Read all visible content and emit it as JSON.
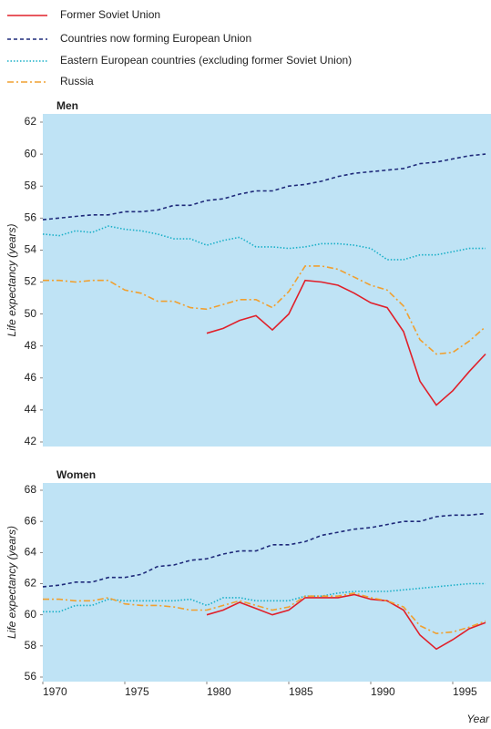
{
  "chart_data": [
    {
      "type": "line",
      "title": "Men",
      "ylabel": "Life expectancy (years)",
      "x": [
        1970,
        1971,
        1972,
        1973,
        1974,
        1975,
        1976,
        1977,
        1978,
        1979,
        1980,
        1981,
        1982,
        1983,
        1984,
        1985,
        1986,
        1987,
        1988,
        1989,
        1990,
        1991,
        1992,
        1993,
        1994,
        1995,
        1996,
        1997
      ],
      "xlim": [
        1970,
        1997
      ],
      "ylim": [
        42,
        62
      ],
      "yticks": [
        42,
        44,
        46,
        48,
        50,
        52,
        54,
        56,
        58,
        60,
        62
      ],
      "legend": "top-left",
      "background": "#bfe3f5",
      "series": [
        {
          "name": "Former Soviet Union",
          "color": "#e0202a",
          "style": "solid",
          "values": [
            null,
            null,
            null,
            null,
            null,
            null,
            null,
            null,
            null,
            null,
            48.8,
            49.1,
            49.6,
            49.9,
            49.0,
            50.0,
            52.1,
            52.0,
            51.8,
            51.3,
            50.7,
            50.4,
            48.9,
            45.8,
            44.3,
            45.2,
            46.4,
            47.5
          ]
        },
        {
          "name": "Countries now forming European Union",
          "color": "#1f2a7a",
          "style": "dashed",
          "values": [
            55.9,
            56.0,
            56.1,
            56.2,
            56.2,
            56.4,
            56.4,
            56.5,
            56.8,
            56.8,
            57.1,
            57.2,
            57.5,
            57.7,
            57.7,
            58.0,
            58.1,
            58.3,
            58.6,
            58.8,
            58.9,
            59.0,
            59.1,
            59.4,
            59.5,
            59.7,
            59.9,
            60.0
          ]
        },
        {
          "name": "Eastern European countries (excluding former Soviet Union)",
          "color": "#1ab0c8",
          "style": "dotted",
          "values": [
            55.0,
            54.9,
            55.2,
            55.1,
            55.5,
            55.3,
            55.2,
            55.0,
            54.7,
            54.7,
            54.3,
            54.6,
            54.8,
            54.2,
            54.2,
            54.1,
            54.2,
            54.4,
            54.4,
            54.3,
            54.1,
            53.4,
            53.4,
            53.7,
            53.7,
            53.9,
            54.1,
            54.1
          ]
        },
        {
          "name": "Russia",
          "color": "#f0a030",
          "style": "dashdot",
          "values": [
            52.1,
            52.1,
            52.0,
            52.1,
            52.1,
            51.5,
            51.3,
            50.8,
            50.8,
            50.4,
            50.3,
            50.6,
            50.9,
            50.9,
            50.4,
            51.4,
            53.0,
            53.0,
            52.8,
            52.3,
            51.8,
            51.5,
            50.5,
            48.4,
            47.5,
            47.6,
            48.3,
            49.2
          ]
        }
      ]
    },
    {
      "type": "line",
      "title": "Women",
      "ylabel": "Life expectancy (years)",
      "xlabel": "Year",
      "x": [
        1970,
        1971,
        1972,
        1973,
        1974,
        1975,
        1976,
        1977,
        1978,
        1979,
        1980,
        1981,
        1982,
        1983,
        1984,
        1985,
        1986,
        1987,
        1988,
        1989,
        1990,
        1991,
        1992,
        1993,
        1994,
        1995,
        1996,
        1997
      ],
      "xlim": [
        1970,
        1997
      ],
      "xticks": [
        1970,
        1975,
        1980,
        1985,
        1990,
        1995
      ],
      "ylim": [
        56,
        68
      ],
      "yticks": [
        56,
        58,
        60,
        62,
        64,
        66,
        68
      ],
      "background": "#bfe3f5",
      "series": [
        {
          "color": "#e0202a",
          "style": "solid",
          "values": [
            null,
            null,
            null,
            null,
            null,
            null,
            null,
            null,
            null,
            null,
            60.0,
            60.3,
            60.8,
            60.4,
            60.0,
            60.3,
            61.1,
            61.1,
            61.1,
            61.3,
            61.0,
            60.9,
            60.3,
            58.7,
            57.8,
            58.4,
            59.1,
            59.5
          ]
        },
        {
          "color": "#1f2a7a",
          "style": "dashed",
          "values": [
            61.8,
            61.9,
            62.1,
            62.1,
            62.4,
            62.4,
            62.6,
            63.1,
            63.2,
            63.5,
            63.6,
            63.9,
            64.1,
            64.1,
            64.5,
            64.5,
            64.7,
            65.1,
            65.3,
            65.5,
            65.6,
            65.8,
            66.0,
            66.0,
            66.3,
            66.4,
            66.4,
            66.5
          ]
        },
        {
          "color": "#1ab0c8",
          "style": "dotted",
          "values": [
            60.2,
            60.2,
            60.6,
            60.6,
            61.0,
            60.9,
            60.9,
            60.9,
            60.9,
            61.0,
            60.6,
            61.1,
            61.1,
            60.9,
            60.9,
            60.9,
            61.2,
            61.2,
            61.4,
            61.5,
            61.5,
            61.5,
            61.6,
            61.7,
            61.8,
            61.9,
            62.0,
            62.0
          ]
        },
        {
          "color": "#f0a030",
          "style": "dashdot",
          "values": [
            61.0,
            61.0,
            60.9,
            60.9,
            61.1,
            60.7,
            60.6,
            60.6,
            60.5,
            60.3,
            60.3,
            60.6,
            60.9,
            60.6,
            60.3,
            60.5,
            61.2,
            61.2,
            61.2,
            61.4,
            61.1,
            60.9,
            60.5,
            59.3,
            58.8,
            58.9,
            59.2,
            59.6
          ]
        }
      ]
    }
  ]
}
